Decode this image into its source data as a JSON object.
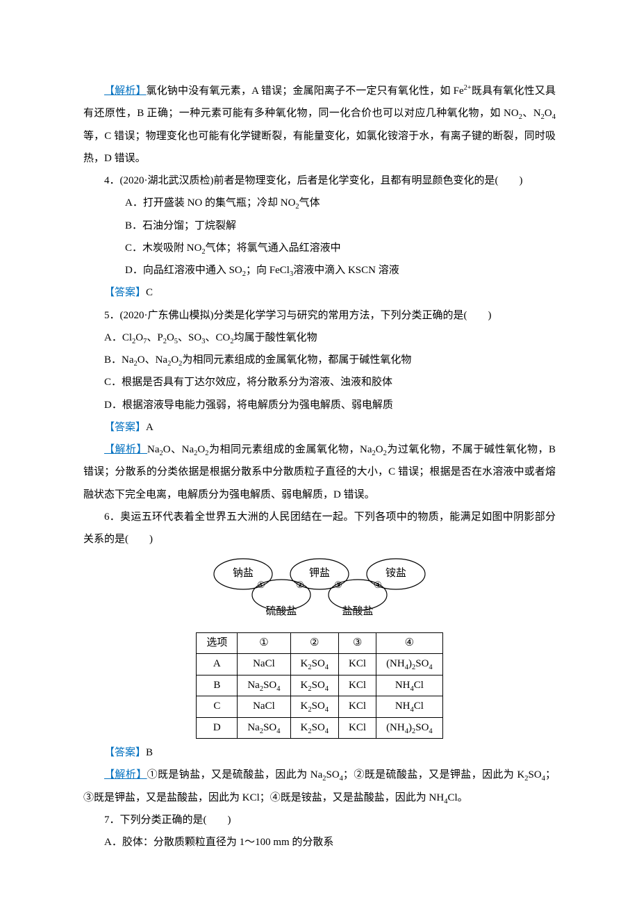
{
  "colors": {
    "accent": "#0070c0",
    "text": "#000000",
    "bg": "#ffffff"
  },
  "p3_analysis_label": "【解析】",
  "p3_analysis_text": "氯化钠中没有氧元素，A 错误；金属阳离子不一定只有氧化性，如 Fe²⁺既具有氧化性又具有还原性，B 正确；一种元素可能有多种氧化物，同一化合价也可以对应几种氧化物，如 NO₂、N₂O₄等，C 错误；物理变化也可能有化学键断裂，有能量变化，如氯化铵溶于水，有离子键的断裂，同时吸热，D 错误。",
  "q4_stem": "4．(2020·湖北武汉质检)前者是物理变化，后者是化学变化，且都有明显颜色变化的是(　　)",
  "q4_A": "A．打开盛装 NO 的集气瓶；冷却 NO₂气体",
  "q4_B": "B．石油分馏；丁烷裂解",
  "q4_C": "C．木炭吸附 NO₂气体；将氯气通入品红溶液中",
  "q4_D": "D．向品红溶液中通入 SO₂；向 FeCl₃溶液中滴入 KSCN 溶液",
  "q4_ans_label": "【答案】",
  "q4_ans": "C",
  "q5_stem": "5．(2020·广东佛山模拟)分类是化学学习与研究的常用方法，下列分类正确的是(　　)",
  "q5_A": "A．Cl₂O₇、P₂O₅、SO₃、CO₂均属于酸性氧化物",
  "q5_B": "B．Na₂O、Na₂O₂为相同元素组成的金属氧化物，都属于碱性氧化物",
  "q5_C": "C．根据是否具有丁达尔效应，将分散系分为溶液、浊液和胶体",
  "q5_D": "D．根据溶液导电能力强弱，将电解质分为强电解质、弱电解质",
  "q5_ans_label": "【答案】",
  "q5_ans": "A",
  "q5_analysis_label": "【解析】",
  "q5_analysis_text": "Na₂O、Na₂O₂为相同元素组成的金属氧化物，Na₂O₂为过氧化物，不属于碱性氧化物，B 错误；分散系的分类依据是根据分散系中分散质粒子直径的大小，C 错误；根据是否在水溶液中或者熔融状态下完全电离，电解质分为强电解质、弱电解质，D 错误。",
  "q6_stem": "6．奥运五环代表着全世界五大洲的人民团结在一起。下列各项中的物质，能满足如图中阴影部分关系的是(　　)",
  "diagram": {
    "labels": {
      "top_left": "钠盐",
      "top_mid": "钾盐",
      "top_right": "铵盐",
      "bot_left": "硫酸盐",
      "bot_right": "盐酸盐"
    },
    "overlap_nums": [
      "①",
      "②",
      "③",
      "④"
    ],
    "ring_stroke": "#000000",
    "ring_fill": "#ffffff",
    "hatch_stroke": "#000000"
  },
  "table": {
    "headers": [
      "选项",
      "①",
      "②",
      "③",
      "④"
    ],
    "rows": [
      [
        "A",
        "NaCl",
        "K₂SO₄",
        "KCl",
        "(NH₄)₂SO₄"
      ],
      [
        "B",
        "Na₂SO₄",
        "K₂SO₄",
        "KCl",
        "NH₄Cl"
      ],
      [
        "C",
        "NaCl",
        "K₂SO₄",
        "KCl",
        "NH₄Cl"
      ],
      [
        "D",
        "Na₂SO₄",
        "K₂SO₄",
        "KCl",
        "(NH₄)₂SO₄"
      ]
    ]
  },
  "q6_ans_label": "【答案】",
  "q6_ans": "B",
  "q6_analysis_label": "【解析】",
  "q6_analysis_text": "①既是钠盐，又是硫酸盐，因此为 Na₂SO₄；②既是硫酸盐，又是钾盐，因此为 K₂SO₄；③既是钾盐，又是盐酸盐，因此为 KCl；④既是铵盐，又是盐酸盐，因此为 NH₄Cl。",
  "q7_stem": "7．下列分类正确的是(　　)",
  "q7_A": "A．胶体：分散质颗粒直径为 1～100 mm 的分散系"
}
